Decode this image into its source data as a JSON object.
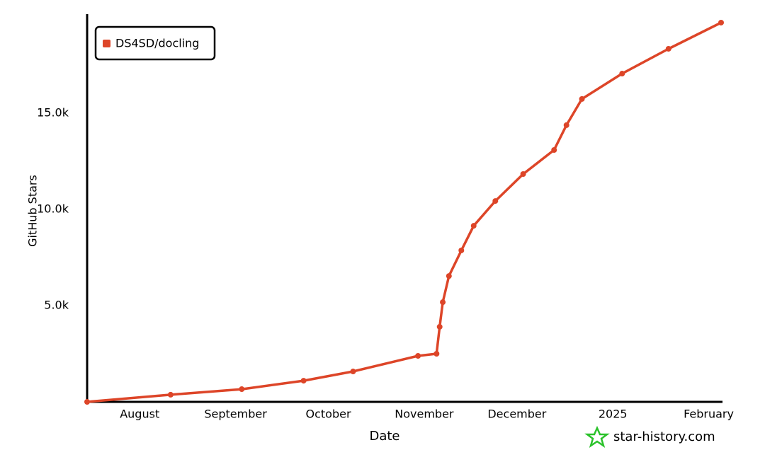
{
  "chart_data": {
    "type": "line",
    "x_label": "Date",
    "y_label": "GitHub Stars",
    "watermark": "star-history.com",
    "x": [
      "2024-07-15",
      "2024-08-11",
      "2024-09-03",
      "2024-09-23",
      "2024-10-09",
      "2024-10-30",
      "2024-11-05",
      "2024-11-06",
      "2024-11-07",
      "2024-11-09",
      "2024-11-13",
      "2024-11-17",
      "2024-11-24",
      "2024-12-03",
      "2024-12-13",
      "2024-12-17",
      "2024-12-22",
      "2025-01-04",
      "2025-01-19",
      "2025-02-05"
    ],
    "series": [
      {
        "name": "DS4SD/docling",
        "color": "#dd4528",
        "values": [
          0,
          370,
          660,
          1100,
          1580,
          2390,
          2500,
          3900,
          5180,
          6540,
          7870,
          9150,
          10440,
          11840,
          13090,
          14380,
          15740,
          17060,
          18350,
          19710
        ]
      }
    ],
    "xlim": [
      "2024-07-15",
      "2025-02-05"
    ],
    "xticks": [
      {
        "value": "2024-08-01",
        "label": "August"
      },
      {
        "value": "2024-09-01",
        "label": "September"
      },
      {
        "value": "2024-10-01",
        "label": "October"
      },
      {
        "value": "2024-11-01",
        "label": "November"
      },
      {
        "value": "2024-12-01",
        "label": "December"
      },
      {
        "value": "2025-01-01",
        "label": "2025"
      },
      {
        "value": "2025-02-01",
        "label": "February"
      }
    ],
    "ylim": [
      0,
      20150
    ],
    "yticks": [
      {
        "value": 5000,
        "label": "5.0k"
      },
      {
        "value": 10000,
        "label": "10.0k"
      },
      {
        "value": 15000,
        "label": "15.0k"
      }
    ],
    "grid": false,
    "legend": "top-left"
  }
}
